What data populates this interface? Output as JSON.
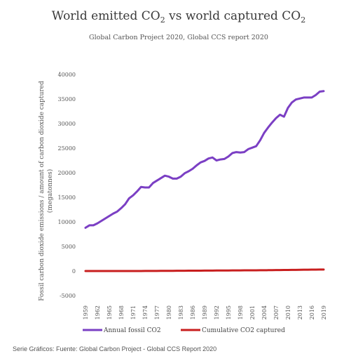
{
  "chart_data": {
    "type": "line",
    "title_main": "World emitted CO",
    "title_sub1": "2",
    "title_mid": " vs world captured CO",
    "title_sub2": "2",
    "subtitle": "Global Carbon Project 2020, Global CCS report 2020",
    "ylabel": "Fossil carbon dioxide emissions / amount of carbon dioxide captured (megatonnes)",
    "ylabel_line1": "Fossil carbon dioxide emissions / amount of carbon dioxide captured",
    "ylabel_line2": "(megatonnes)",
    "xlabel": "",
    "ylim": [
      -5000,
      40000
    ],
    "yticks": [
      -5000,
      0,
      5000,
      10000,
      15000,
      20000,
      25000,
      30000,
      35000,
      40000
    ],
    "xticks": [
      1959,
      1962,
      1965,
      1968,
      1971,
      1974,
      1977,
      1980,
      1983,
      1986,
      1989,
      1992,
      1995,
      1998,
      2001,
      2004,
      2007,
      2010,
      2013,
      2016,
      2019
    ],
    "x": [
      1959,
      1960,
      1961,
      1962,
      1963,
      1964,
      1965,
      1966,
      1967,
      1968,
      1969,
      1970,
      1971,
      1972,
      1973,
      1974,
      1975,
      1976,
      1977,
      1978,
      1979,
      1980,
      1981,
      1982,
      1983,
      1984,
      1985,
      1986,
      1987,
      1988,
      1989,
      1990,
      1991,
      1992,
      1993,
      1994,
      1995,
      1996,
      1997,
      1998,
      1999,
      2000,
      2001,
      2002,
      2003,
      2004,
      2005,
      2006,
      2007,
      2008,
      2009,
      2010,
      2011,
      2012,
      2013,
      2014,
      2015,
      2016,
      2017,
      2018,
      2019
    ],
    "series": [
      {
        "name": "Annual fossil CO2",
        "color": "#7b3fc4",
        "values": [
          8800,
          9300,
          9300,
          9700,
          10200,
          10700,
          11200,
          11700,
          12100,
          12800,
          13600,
          14800,
          15400,
          16200,
          17100,
          17000,
          17000,
          17900,
          18400,
          18900,
          19400,
          19200,
          18800,
          18800,
          19200,
          19900,
          20300,
          20800,
          21500,
          22100,
          22400,
          22900,
          23100,
          22500,
          22700,
          22800,
          23300,
          24000,
          24200,
          24100,
          24200,
          24800,
          25100,
          25400,
          26600,
          28100,
          29200,
          30200,
          31100,
          31800,
          31400,
          33200,
          34300,
          34900,
          35100,
          35300,
          35300,
          35300,
          35800,
          36500,
          36600
        ]
      },
      {
        "name": "Cumulative CO2 captured",
        "color": "#c81e1e",
        "values": [
          0,
          0,
          0,
          0,
          0,
          0,
          0,
          0,
          0,
          0,
          0,
          0,
          0,
          0,
          5,
          10,
          15,
          20,
          25,
          30,
          35,
          40,
          45,
          50,
          55,
          60,
          65,
          70,
          75,
          80,
          85,
          90,
          95,
          100,
          105,
          110,
          115,
          120,
          125,
          130,
          135,
          140,
          145,
          150,
          155,
          160,
          170,
          180,
          190,
          200,
          210,
          220,
          230,
          240,
          250,
          260,
          270,
          280,
          290,
          300,
          300
        ]
      }
    ],
    "legend_position": "bottom",
    "grid": false
  },
  "caption": "Serie Gráficos: Fuente: Global Carbon Project - Global CCS Report 2020"
}
